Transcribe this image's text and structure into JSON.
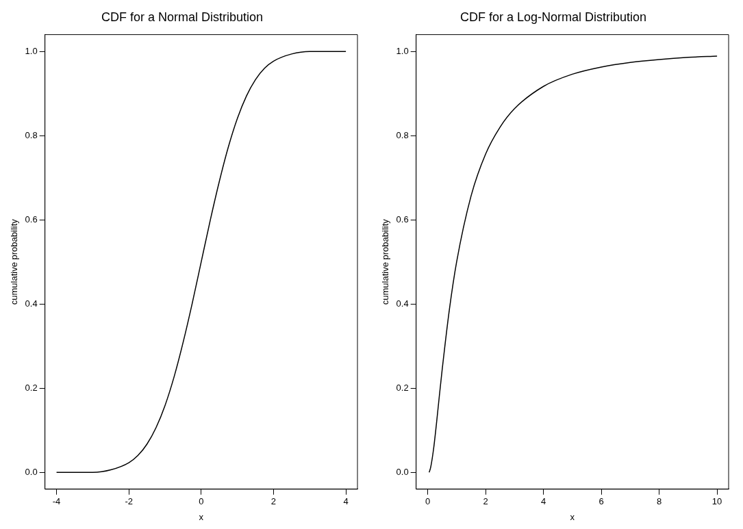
{
  "chart_data": [
    {
      "type": "line",
      "title": "CDF for a Normal Distribution",
      "xlabel": "x",
      "ylabel": "cumulative probability",
      "marker": "none",
      "grid": false,
      "legend": false,
      "x": [
        -4,
        -3.5,
        -3,
        -2.5,
        -2,
        -1.75,
        -1.5,
        -1.25,
        -1,
        -0.75,
        -0.5,
        -0.25,
        0,
        0.25,
        0.5,
        0.75,
        1,
        1.25,
        1.5,
        1.75,
        2,
        2.5,
        3,
        3.5,
        4
      ],
      "series": [
        {
          "color": "#000000",
          "values": [
            0.0,
            0.0,
            0.0,
            0.006,
            0.023,
            0.04,
            0.067,
            0.106,
            0.159,
            0.227,
            0.309,
            0.401,
            0.5,
            0.599,
            0.691,
            0.773,
            0.841,
            0.894,
            0.933,
            0.96,
            0.977,
            0.994,
            1.0,
            1.0,
            1.0
          ]
        }
      ],
      "xlim": [
        -4.32,
        4.32
      ],
      "xticks": [
        -4,
        -2,
        0,
        2,
        4
      ],
      "ylim": [
        -0.04,
        1.04
      ],
      "yticks": [
        {
          "value": 0,
          "label": "0.0"
        },
        {
          "value": 0.2,
          "label": "0.2"
        },
        {
          "value": 0.4,
          "label": "0.4"
        },
        {
          "value": 0.6,
          "label": "0.6"
        },
        {
          "value": 0.8,
          "label": "0.8"
        },
        {
          "value": 1,
          "label": "1.0"
        }
      ]
    },
    {
      "type": "line",
      "title": "CDF for a Log-Normal Distribution",
      "xlabel": "x",
      "ylabel": "cumulative probability",
      "marker": "none",
      "grid": false,
      "legend": false,
      "x": [
        0.05,
        0.1,
        0.2,
        0.3,
        0.4,
        0.5,
        0.75,
        1,
        1.5,
        2,
        2.5,
        3,
        4,
        5,
        6,
        7,
        8,
        9,
        10
      ],
      "series": [
        {
          "color": "#000000",
          "values": [
            0.0,
            0.011,
            0.054,
            0.114,
            0.18,
            0.244,
            0.387,
            0.5,
            0.657,
            0.756,
            0.82,
            0.864,
            0.917,
            0.946,
            0.963,
            0.974,
            0.981,
            0.986,
            0.989
          ]
        }
      ],
      "xlim": [
        -0.4,
        10.4
      ],
      "xticks": [
        0,
        2,
        4,
        6,
        8,
        10
      ],
      "ylim": [
        -0.04,
        1.04
      ],
      "yticks": [
        {
          "value": 0,
          "label": "0.0"
        },
        {
          "value": 0.2,
          "label": "0.2"
        },
        {
          "value": 0.4,
          "label": "0.4"
        },
        {
          "value": 0.6,
          "label": "0.6"
        },
        {
          "value": 0.8,
          "label": "0.8"
        },
        {
          "value": 1,
          "label": "1.0"
        }
      ]
    }
  ]
}
